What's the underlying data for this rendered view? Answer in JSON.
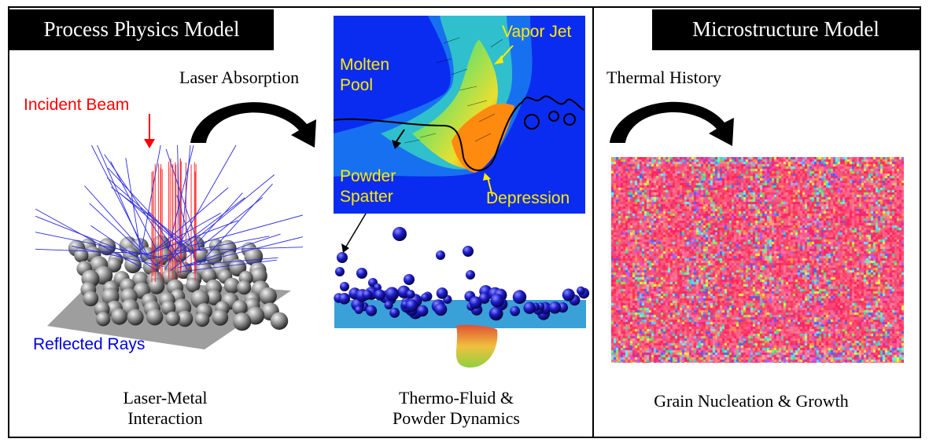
{
  "headers": {
    "left": "Process Physics Model",
    "right": "Microstructure Model"
  },
  "arrows": {
    "laser_absorption": "Laser Absorption",
    "thermal_history": "Thermal History"
  },
  "laser_panel": {
    "incident_beam": "Incident Beam",
    "reflected_rays": "Reflected Rays",
    "caption_line1": "Laser-Metal",
    "caption_line2": "Interaction"
  },
  "fluid_panel": {
    "molten_pool_1": "Molten",
    "molten_pool_2": "Pool",
    "vapor_jet": "Vapor Jet",
    "powder_1": "Powder",
    "powder_2": "Spatter",
    "depression": "Depression",
    "caption_line1": "Thermo-Fluid &",
    "caption_line2": "Powder Dynamics"
  },
  "micro_panel": {
    "caption": "Grain Nucleation & Growth"
  },
  "colors": {
    "incident": "#ff0000",
    "reflected": "#0000dd",
    "sim_bg": "#0a2cf0",
    "label_yellow": "#ffeb00"
  }
}
